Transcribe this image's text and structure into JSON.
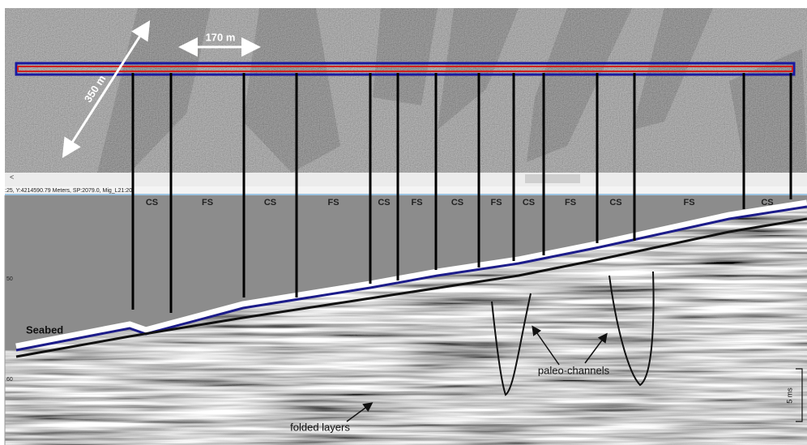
{
  "sonar": {
    "width_label": "170 m",
    "length_label": "350 m"
  },
  "status_text": ":25, Y:4214590.79 Meters, SP:2079.0, Mig_L21:20)",
  "scroll_label": "<",
  "facies": [
    "CS",
    "FS",
    "CS",
    "FS",
    "CS",
    "FS",
    "CS",
    "FS",
    "CS",
    "FS",
    "CS",
    "FS",
    "CS"
  ],
  "depth_axis": {
    "labels": [
      "50",
      "60"
    ]
  },
  "annotations": {
    "seabed": "Seabed",
    "channels": "paleo-channels",
    "folds": "folded layers",
    "scale": "5 ms"
  }
}
